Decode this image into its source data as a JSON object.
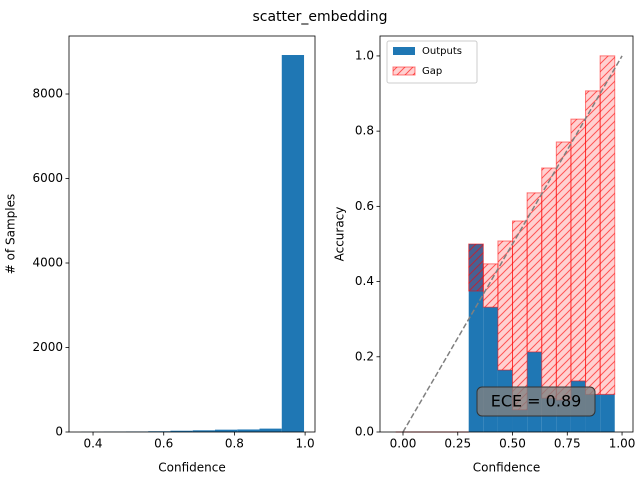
{
  "figure_title": "scatter_embedding",
  "chart_data": [
    {
      "type": "histogram",
      "xlabel": "Confidence",
      "ylabel": "# of Samples",
      "color": "#1f77b4",
      "bins": [
        0.367,
        0.43,
        0.493,
        0.556,
        0.619,
        0.682,
        0.745,
        0.808,
        0.871,
        0.934,
        0.997
      ],
      "values": [
        5,
        8,
        12,
        18,
        30,
        40,
        55,
        60,
        80,
        8923
      ],
      "xlim": [
        0.332,
        1.028
      ],
      "xticks": [
        0.4,
        0.6,
        0.8,
        {
          "value": 1.0,
          "label": "1.0"
        }
      ],
      "ylim": [
        0,
        9373
      ],
      "yticks": [
        0,
        2000,
        4000,
        6000,
        8000
      ]
    },
    {
      "type": "reliability",
      "xlabel": "Confidence",
      "ylabel": "Accuracy",
      "x": [
        0,
        0.0667,
        0.1333,
        0.2,
        0.2667,
        0.3333,
        0.4,
        0.4667,
        0.5333,
        0.6,
        0.6667,
        0.7333,
        0.8,
        0.8667,
        0.9333
      ],
      "series": [
        {
          "name": "Outputs",
          "color": "#1f77b4",
          "values": [
            0,
            0,
            0,
            0,
            0,
            0.5,
            0.332,
            0.165,
            0.059,
            0.213,
            0.09,
            0.085,
            0.136,
            0.1,
            0.1
          ]
        },
        {
          "name": "Gap",
          "color": "#ff0000",
          "values": [
            0,
            0,
            0,
            0,
            0,
            -0.125,
            0.115,
            0.343,
            0.502,
            0.423,
            0.612,
            0.686,
            0.696,
            0.807,
            0.9
          ]
        }
      ],
      "annotation": "ECE = 0.89",
      "legend": "upper left",
      "xlim": [
        -0.105,
        1.05
      ],
      "xticks": [
        {
          "value": 0,
          "label": "0.00"
        },
        0.25,
        {
          "value": 0.5,
          "label": "0.50"
        },
        0.75,
        {
          "value": 1,
          "label": "1.00"
        }
      ],
      "ylim": [
        0,
        1.053
      ],
      "yticks": [
        {
          "value": 0,
          "label": "0.0"
        },
        0.2,
        0.4,
        0.6,
        0.8,
        {
          "value": 1,
          "label": "1.0"
        }
      ]
    }
  ]
}
